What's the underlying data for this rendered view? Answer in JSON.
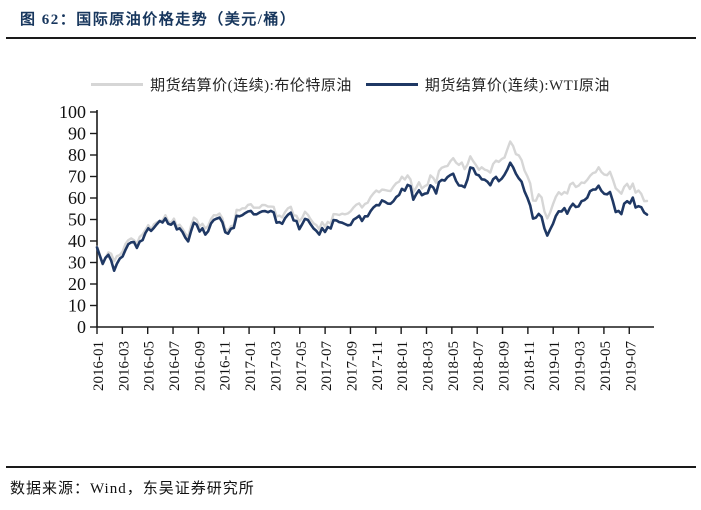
{
  "header": {
    "title": "图 62：国际原油价格走势（美元/桶）"
  },
  "footer": {
    "source": "数据来源：Wind，东吴证券研究所"
  },
  "colors": {
    "title_navy": "#17365D",
    "brent_gray": "#D6D6D6",
    "wti_navy": "#1F3864",
    "axis_black": "#1a1a1a"
  },
  "chart_data": {
    "type": "line",
    "title": "国际原油价格走势（美元/桶）",
    "unit": "美元/桶",
    "grid": false,
    "legend_position": "top",
    "ylim": [
      0,
      100
    ],
    "y_ticks": [
      0,
      10,
      20,
      30,
      40,
      50,
      60,
      70,
      80,
      90,
      100
    ],
    "x_labels": [
      "2016-01",
      "2016-03",
      "2016-05",
      "2016-07",
      "2016-09",
      "2016-11",
      "2017-01",
      "2017-03",
      "2017-05",
      "2017-07",
      "2017-09",
      "2017-11",
      "2018-01",
      "2018-03",
      "2018-05",
      "2018-07",
      "2018-09",
      "2018-11",
      "2019-01",
      "2019-03",
      "2019-05",
      "2019-07"
    ],
    "x_span": {
      "start": "2016-01",
      "end": "2019-08",
      "sampling": "weekly"
    },
    "series": [
      {
        "name": "期货结算价(连续):布伦特原油",
        "color": "#D6D6D6",
        "values": [
          37.3,
          33.6,
          29.0,
          32.2,
          34.7,
          34.1,
          30.5,
          33.0,
          33.5,
          35.1,
          38.7,
          40.4,
          41.2,
          40.4,
          38.7,
          41.9,
          43.1,
          45.1,
          47.4,
          45.4,
          47.8,
          48.7,
          49.3,
          49.6,
          52.0,
          49.2,
          48.4,
          50.4,
          46.8,
          47.6,
          45.7,
          43.5,
          41.8,
          47.0,
          50.9,
          49.9,
          46.8,
          48.0,
          45.8,
          47.0,
          50.2,
          52.0,
          51.9,
          52.8,
          50.5,
          45.6,
          44.8,
          46.9,
          47.2,
          54.5,
          54.3,
          55.2,
          55.2,
          56.8,
          57.1,
          55.5,
          55.5,
          55.5,
          56.8,
          56.7,
          56.0,
          56.0,
          55.9,
          51.4,
          51.8,
          51.0,
          53.5,
          55.2,
          55.9,
          52.0,
          51.7,
          49.1,
          50.8,
          53.6,
          52.2,
          50.0,
          48.2,
          47.4,
          45.5,
          48.8,
          46.7,
          48.9,
          48.1,
          52.5,
          52.4,
          52.1,
          52.7,
          52.4,
          52.8,
          53.8,
          55.6,
          56.9,
          57.5,
          55.6,
          57.2,
          57.8,
          60.4,
          62.1,
          63.5,
          62.7,
          63.9,
          63.7,
          63.4,
          63.2,
          65.3,
          66.9,
          67.6,
          69.9,
          68.6,
          70.5,
          68.6,
          62.8,
          64.8,
          67.3,
          64.4,
          65.5,
          66.2,
          70.5,
          69.3,
          67.1,
          72.6,
          74.1,
          74.6,
          74.9,
          77.1,
          78.5,
          76.4,
          75.4,
          76.5,
          73.4,
          75.6,
          79.4,
          77.1,
          75.3,
          73.1,
          74.3,
          73.2,
          72.8,
          71.8,
          75.8,
          77.4,
          76.8,
          78.1,
          78.8,
          82.7,
          86.3,
          84.2,
          80.4,
          79.8,
          77.6,
          72.8,
          70.2,
          66.8,
          58.8,
          58.7,
          61.7,
          60.3,
          53.8,
          50.5,
          53.2,
          57.1,
          60.5,
          62.7,
          61.6,
          62.8,
          62.1,
          66.3,
          67.1,
          65.1,
          65.7,
          67.2,
          67.0,
          68.4,
          70.3,
          71.6,
          72.0,
          74.3,
          72.1,
          70.9,
          70.6,
          72.2,
          68.7,
          64.5,
          63.3,
          62.0,
          65.2,
          66.6,
          64.2,
          66.7,
          62.5,
          63.5,
          61.9,
          58.5,
          58.6
        ]
      },
      {
        "name": "期货结算价(连续):WTI原油",
        "color": "#1F3864",
        "values": [
          37.0,
          33.2,
          29.4,
          32.2,
          33.6,
          30.9,
          26.2,
          29.4,
          31.8,
          32.8,
          35.9,
          38.5,
          39.4,
          39.5,
          36.8,
          39.7,
          40.4,
          43.7,
          45.9,
          44.7,
          46.2,
          47.8,
          49.3,
          48.6,
          50.5,
          48.0,
          47.6,
          48.9,
          45.4,
          45.9,
          44.2,
          41.6,
          39.8,
          44.5,
          48.5,
          47.6,
          44.4,
          45.9,
          43.0,
          44.5,
          48.2,
          49.8,
          50.4,
          50.9,
          48.7,
          44.1,
          43.4,
          45.7,
          46.1,
          51.7,
          51.5,
          52.0,
          53.0,
          53.7,
          54.0,
          52.4,
          52.4,
          53.2,
          53.8,
          53.9,
          53.4,
          54.0,
          53.3,
          48.5,
          48.8,
          48.0,
          50.6,
          52.2,
          53.2,
          49.6,
          49.3,
          45.5,
          47.8,
          50.3,
          49.8,
          47.7,
          45.8,
          44.7,
          43.0,
          46.0,
          44.2,
          46.5,
          45.8,
          49.7,
          49.6,
          48.8,
          48.5,
          47.9,
          47.3,
          47.5,
          49.9,
          50.7,
          51.7,
          49.3,
          51.5,
          51.5,
          53.9,
          55.6,
          56.7,
          56.6,
          58.9,
          58.3,
          57.4,
          57.3,
          58.5,
          60.4,
          61.4,
          64.3,
          63.4,
          66.1,
          65.5,
          59.2,
          61.7,
          63.6,
          61.3,
          62.0,
          62.3,
          65.9,
          64.9,
          62.1,
          67.4,
          68.4,
          68.1,
          69.7,
          70.7,
          71.3,
          67.9,
          65.8,
          65.7,
          65.0,
          68.6,
          74.2,
          73.8,
          71.0,
          70.5,
          68.7,
          68.5,
          67.6,
          65.9,
          68.7,
          69.8,
          67.8,
          69.0,
          70.8,
          73.3,
          76.4,
          74.3,
          71.3,
          69.1,
          67.6,
          63.1,
          60.2,
          56.5,
          50.4,
          50.9,
          52.6,
          51.2,
          45.9,
          42.5,
          45.3,
          48.0,
          51.6,
          53.8,
          53.7,
          55.3,
          52.7,
          55.6,
          57.3,
          55.8,
          56.1,
          58.5,
          59.0,
          60.1,
          63.1,
          63.9,
          64.0,
          65.7,
          63.3,
          61.9,
          61.7,
          62.8,
          58.6,
          53.5,
          54.0,
          52.5,
          57.4,
          58.5,
          57.5,
          60.2,
          55.6,
          56.2,
          55.7,
          53.2,
          52.3
        ]
      }
    ]
  }
}
